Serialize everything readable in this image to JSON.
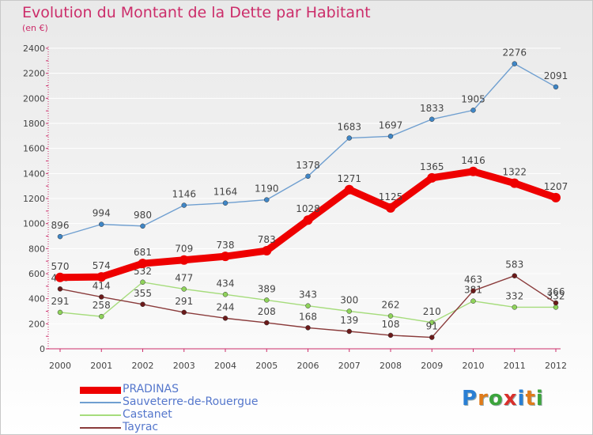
{
  "header": {
    "title": "Evolution du Montant de la Dette par Habitant",
    "subtitle": "(en €)"
  },
  "logo": {
    "text": "Proxiti",
    "letter_colors": [
      "#2a7fd4",
      "#e07b1a",
      "#3ca43c",
      "#d9302c",
      "#2a7fd4",
      "#e07b1a",
      "#3ca43c"
    ]
  },
  "colors": {
    "accent": "#cc2d6a",
    "axis": "#cc2d6a",
    "grid": "#ffffff",
    "label": "#444444"
  },
  "chart_data": {
    "type": "line",
    "title": "Evolution du Montant de la Dette par Habitant",
    "subtitle": "(en €)",
    "x": [
      "2000",
      "2001",
      "2002",
      "2003",
      "2004",
      "2005",
      "2006",
      "2007",
      "2008",
      "2009",
      "2010",
      "2011",
      "2012"
    ],
    "ylim": [
      0,
      2400
    ],
    "yticks": [
      "0",
      "200",
      "400",
      "600",
      "800",
      "1000",
      "1200",
      "1400",
      "1600",
      "1800",
      "2000",
      "2200",
      "2400"
    ],
    "grid": true,
    "legend_position": "bottom-left",
    "series": [
      {
        "name": "PRADINAS",
        "values": [
          570,
          574,
          681,
          709,
          738,
          783,
          1028,
          1271,
          1125,
          1365,
          1416,
          1322,
          1207
        ],
        "labels": [
          "570",
          "574",
          "681",
          "709",
          "738",
          "783",
          "1028",
          "1271",
          "1125",
          "1365",
          "1416",
          "1322",
          "1207"
        ],
        "color": "#ee0000",
        "marker": "#ee0000",
        "emphasis": true
      },
      {
        "name": "Sauveterre-de-Rouergue",
        "values": [
          896,
          994,
          980,
          1146,
          1164,
          1190,
          1378,
          1683,
          1697,
          1833,
          1905,
          2276,
          2091
        ],
        "labels": [
          "896",
          "994",
          "980",
          "1146",
          "1164",
          "1190",
          "1378",
          "1683",
          "1697",
          "1833",
          "1905",
          "2276",
          "2091"
        ],
        "color": "#6f9fd0",
        "marker": "#3f86c6"
      },
      {
        "name": "Castanet",
        "values": [
          291,
          258,
          532,
          477,
          434,
          389,
          343,
          300,
          262,
          210,
          381,
          332,
          332
        ],
        "labels": [
          "291",
          "258",
          "532",
          "477",
          "434",
          "389",
          "343",
          "300",
          "262",
          "210",
          "381",
          "332",
          "332"
        ],
        "color": "#a6dc7c",
        "marker": "#8fd35a"
      },
      {
        "name": "Tayrac",
        "values": [
          478,
          414,
          355,
          291,
          244,
          208,
          168,
          139,
          108,
          91,
          463,
          583,
          366
        ],
        "labels": [
          "478",
          "414",
          "355",
          "291",
          "244",
          "208",
          "168",
          "139",
          "108",
          "91",
          "463",
          "583",
          "366"
        ],
        "color": "#8a3b3b",
        "marker": "#6b1a1a"
      }
    ]
  }
}
